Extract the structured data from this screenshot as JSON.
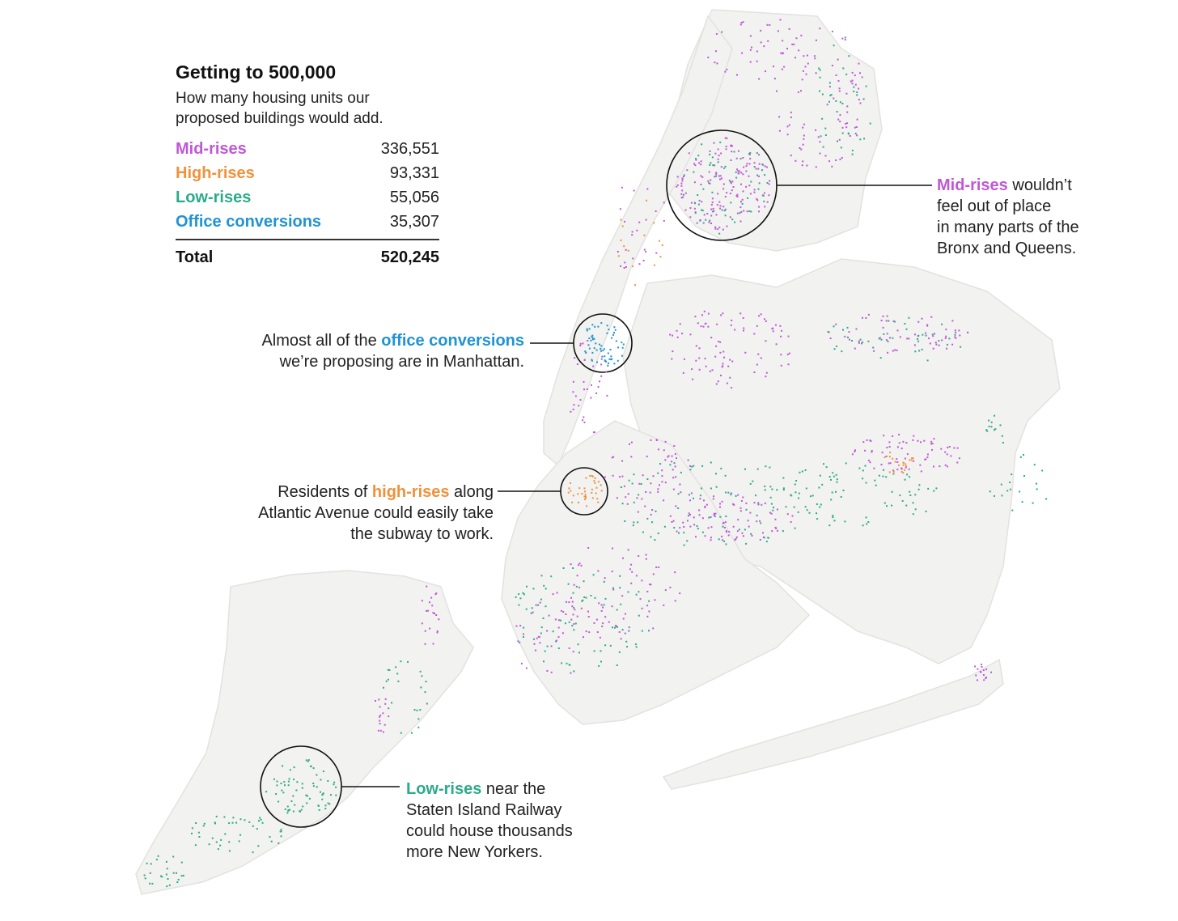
{
  "legend": {
    "title": "Getting to 500,000",
    "subtitle": "How many housing units our proposed buildings would add.",
    "rows": [
      {
        "label": "Mid-rises",
        "value": "336,551",
        "color": "#c157d6"
      },
      {
        "label": "High-rises",
        "value": "93,331",
        "color": "#f2913a"
      },
      {
        "label": "Low-rises",
        "value": "55,056",
        "color": "#2bab8a"
      },
      {
        "label": "Office conversions",
        "value": "35,307",
        "color": "#1f93d3"
      }
    ],
    "total_label": "Total",
    "total_value": "520,245"
  },
  "annotations": {
    "midrise": {
      "highlight": "Mid-rises",
      "line1_rest": " wouldn’t",
      "line2": "feel out of place",
      "line3": "in many parts of the",
      "line4": "Bronx and Queens."
    },
    "office": {
      "prefix": "Almost all of the ",
      "highlight": "office conversions",
      "line2": "we’re proposing are in Manhattan."
    },
    "highrise": {
      "prefix": "Residents of ",
      "highlight": "high-rises",
      "line1_rest": " along",
      "line2": "Atlantic Avenue could easily take",
      "line3": "the subway to work."
    },
    "lowrise": {
      "highlight": "Low-rises",
      "line1_rest": " near the",
      "line2": "Staten Island Railway",
      "line3": "could house thousands",
      "line4": "more New Yorkers."
    }
  },
  "colors": {
    "land": "#f2f2f0",
    "land_stroke": "#e2e2df",
    "water": "#ffffff",
    "park": "#e9e9e6",
    "callout": "#111111"
  }
}
